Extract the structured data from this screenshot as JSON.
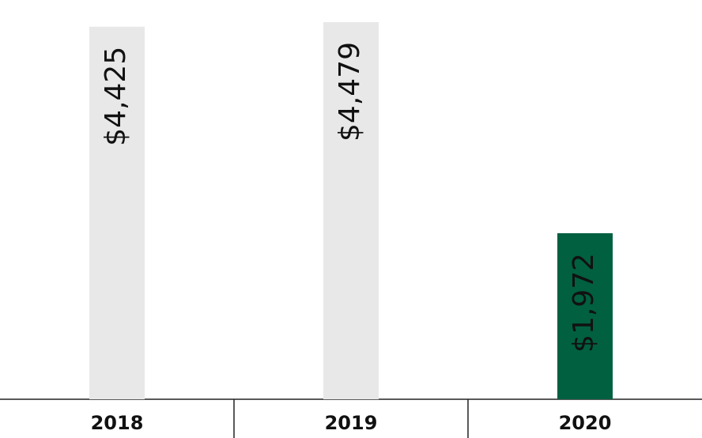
{
  "chart_data": {
    "type": "bar",
    "categories": [
      "2018",
      "2019",
      "2020"
    ],
    "values": [
      4425,
      4479,
      1972
    ],
    "value_labels": [
      "$4,425",
      "$4,479",
      "$1,972"
    ],
    "colors": [
      "#e8e8e8",
      "#e8e8e8",
      "#006040"
    ]
  }
}
